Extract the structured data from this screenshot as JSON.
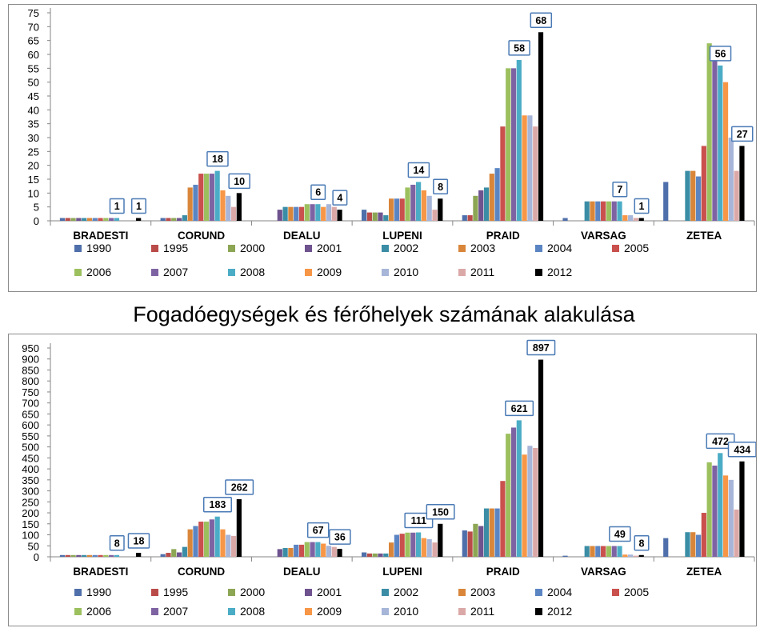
{
  "caption": "Fogadóegységek és férőhelyek számának alakulása",
  "legend_years": [
    "1990",
    "1995",
    "2000",
    "2001",
    "2002",
    "2003",
    "2004",
    "2005",
    "2006",
    "2007",
    "2008",
    "2009",
    "2010",
    "2011",
    "2012"
  ],
  "colors": [
    "#4f6faa",
    "#b94b49",
    "#8ca654",
    "#6e538f",
    "#3b8da5",
    "#d9863a",
    "#5b85c2",
    "#c9504d",
    "#9cc05e",
    "#7e63a3",
    "#4bacc6",
    "#f79646",
    "#a6b5d8",
    "#dba8a8",
    "#000000"
  ],
  "chart_data": [
    {
      "type": "bar",
      "categories": [
        "BRADESTI",
        "CORUND",
        "DEALU",
        "LUPENI",
        "PRAID",
        "VARSAG",
        "ZETEA"
      ],
      "ylim": [
        0,
        75
      ],
      "yticks": [
        0,
        5,
        10,
        15,
        20,
        25,
        30,
        35,
        40,
        45,
        50,
        55,
        60,
        65,
        70,
        75
      ],
      "grid": false,
      "legend_position": "bottom",
      "series": [
        {
          "name": "1990",
          "values": [
            1,
            1,
            0,
            4,
            2,
            1,
            14
          ]
        },
        {
          "name": "1995",
          "values": [
            1,
            1,
            0,
            3,
            2,
            0,
            0
          ]
        },
        {
          "name": "2000",
          "values": [
            1,
            1,
            0,
            3,
            9,
            0,
            0
          ]
        },
        {
          "name": "2001",
          "values": [
            1,
            1,
            4,
            3,
            11,
            0,
            0
          ]
        },
        {
          "name": "2002",
          "values": [
            1,
            2,
            5,
            2,
            12,
            7,
            18
          ]
        },
        {
          "name": "2003",
          "values": [
            1,
            12,
            5,
            8,
            17,
            7,
            18
          ]
        },
        {
          "name": "2004",
          "values": [
            1,
            13,
            5,
            8,
            19,
            7,
            16
          ]
        },
        {
          "name": "2005",
          "values": [
            1,
            17,
            5,
            8,
            34,
            7,
            27
          ]
        },
        {
          "name": "2006",
          "values": [
            1,
            17,
            6,
            12,
            55,
            7,
            64
          ]
        },
        {
          "name": "2007",
          "values": [
            1,
            17,
            6,
            13,
            55,
            7,
            62
          ]
        },
        {
          "name": "2008",
          "values": [
            1,
            18,
            6,
            14,
            58,
            7,
            56
          ]
        },
        {
          "name": "2009",
          "values": [
            0,
            11,
            5,
            11,
            38,
            2,
            50
          ]
        },
        {
          "name": "2010",
          "values": [
            0,
            9,
            6,
            9,
            38,
            2,
            30
          ]
        },
        {
          "name": "2011",
          "values": [
            0,
            5,
            5,
            4,
            34,
            1,
            18
          ]
        },
        {
          "name": "2012",
          "values": [
            1,
            10,
            4,
            8,
            68,
            1,
            27
          ]
        }
      ],
      "callouts": [
        {
          "category": "BRADESTI",
          "series": "2008",
          "text": "1"
        },
        {
          "category": "BRADESTI",
          "series": "2012",
          "text": "1"
        },
        {
          "category": "CORUND",
          "series": "2008",
          "text": "18"
        },
        {
          "category": "CORUND",
          "series": "2012",
          "text": "10"
        },
        {
          "category": "DEALU",
          "series": "2008",
          "text": "6"
        },
        {
          "category": "DEALU",
          "series": "2012",
          "text": "4"
        },
        {
          "category": "LUPENI",
          "series": "2008",
          "text": "14"
        },
        {
          "category": "LUPENI",
          "series": "2012",
          "text": "8"
        },
        {
          "category": "PRAID",
          "series": "2008",
          "text": "58"
        },
        {
          "category": "PRAID",
          "series": "2012",
          "text": "68"
        },
        {
          "category": "VARSAG",
          "series": "2008",
          "text": "7"
        },
        {
          "category": "VARSAG",
          "series": "2012",
          "text": "1"
        },
        {
          "category": "ZETEA",
          "series": "2008",
          "text": "56"
        },
        {
          "category": "ZETEA",
          "series": "2012",
          "text": "27"
        }
      ]
    },
    {
      "type": "bar",
      "categories": [
        "BRADESTI",
        "CORUND",
        "DEALU",
        "LUPENI",
        "PRAID",
        "VARSAG",
        "ZETEA"
      ],
      "ylim": [
        0,
        950
      ],
      "yticks": [
        0,
        50,
        100,
        150,
        200,
        250,
        300,
        350,
        400,
        450,
        500,
        550,
        600,
        650,
        700,
        750,
        800,
        850,
        900,
        950
      ],
      "grid": false,
      "legend_position": "bottom",
      "series": [
        {
          "name": "1990",
          "values": [
            8,
            12,
            0,
            20,
            120,
            5,
            85
          ]
        },
        {
          "name": "1995",
          "values": [
            8,
            18,
            0,
            15,
            115,
            0,
            0
          ]
        },
        {
          "name": "2000",
          "values": [
            8,
            35,
            0,
            15,
            150,
            0,
            0
          ]
        },
        {
          "name": "2001",
          "values": [
            8,
            20,
            35,
            15,
            140,
            0,
            0
          ]
        },
        {
          "name": "2002",
          "values": [
            8,
            45,
            40,
            15,
            220,
            49,
            112
          ]
        },
        {
          "name": "2003",
          "values": [
            8,
            125,
            40,
            65,
            220,
            49,
            112
          ]
        },
        {
          "name": "2004",
          "values": [
            8,
            140,
            55,
            100,
            220,
            49,
            100
          ]
        },
        {
          "name": "2005",
          "values": [
            8,
            160,
            55,
            105,
            345,
            49,
            200
          ]
        },
        {
          "name": "2006",
          "values": [
            8,
            160,
            67,
            110,
            560,
            49,
            430
          ]
        },
        {
          "name": "2007",
          "values": [
            8,
            170,
            67,
            110,
            588,
            49,
            415
          ]
        },
        {
          "name": "2008",
          "values": [
            8,
            183,
            67,
            111,
            621,
            49,
            472
          ]
        },
        {
          "name": "2009",
          "values": [
            0,
            125,
            60,
            85,
            465,
            10,
            370
          ]
        },
        {
          "name": "2010",
          "values": [
            0,
            100,
            50,
            80,
            505,
            10,
            350
          ]
        },
        {
          "name": "2011",
          "values": [
            0,
            95,
            45,
            65,
            495,
            5,
            215
          ]
        },
        {
          "name": "2012",
          "values": [
            18,
            262,
            36,
            150,
            897,
            8,
            434
          ]
        }
      ],
      "callouts": [
        {
          "category": "BRADESTI",
          "series": "2008",
          "text": "8"
        },
        {
          "category": "BRADESTI",
          "series": "2012",
          "text": "18"
        },
        {
          "category": "CORUND",
          "series": "2008",
          "text": "183"
        },
        {
          "category": "CORUND",
          "series": "2012",
          "text": "262"
        },
        {
          "category": "DEALU",
          "series": "2008",
          "text": "67"
        },
        {
          "category": "DEALU",
          "series": "2012",
          "text": "36"
        },
        {
          "category": "LUPENI",
          "series": "2008",
          "text": "111"
        },
        {
          "category": "LUPENI",
          "series": "2012",
          "text": "150"
        },
        {
          "category": "PRAID",
          "series": "2008",
          "text": "621"
        },
        {
          "category": "PRAID",
          "series": "2012",
          "text": "897"
        },
        {
          "category": "VARSAG",
          "series": "2008",
          "text": "49"
        },
        {
          "category": "VARSAG",
          "series": "2012",
          "text": "8"
        },
        {
          "category": "ZETEA",
          "series": "2008",
          "text": "472"
        },
        {
          "category": "ZETEA",
          "series": "2012",
          "text": "434"
        }
      ]
    }
  ]
}
